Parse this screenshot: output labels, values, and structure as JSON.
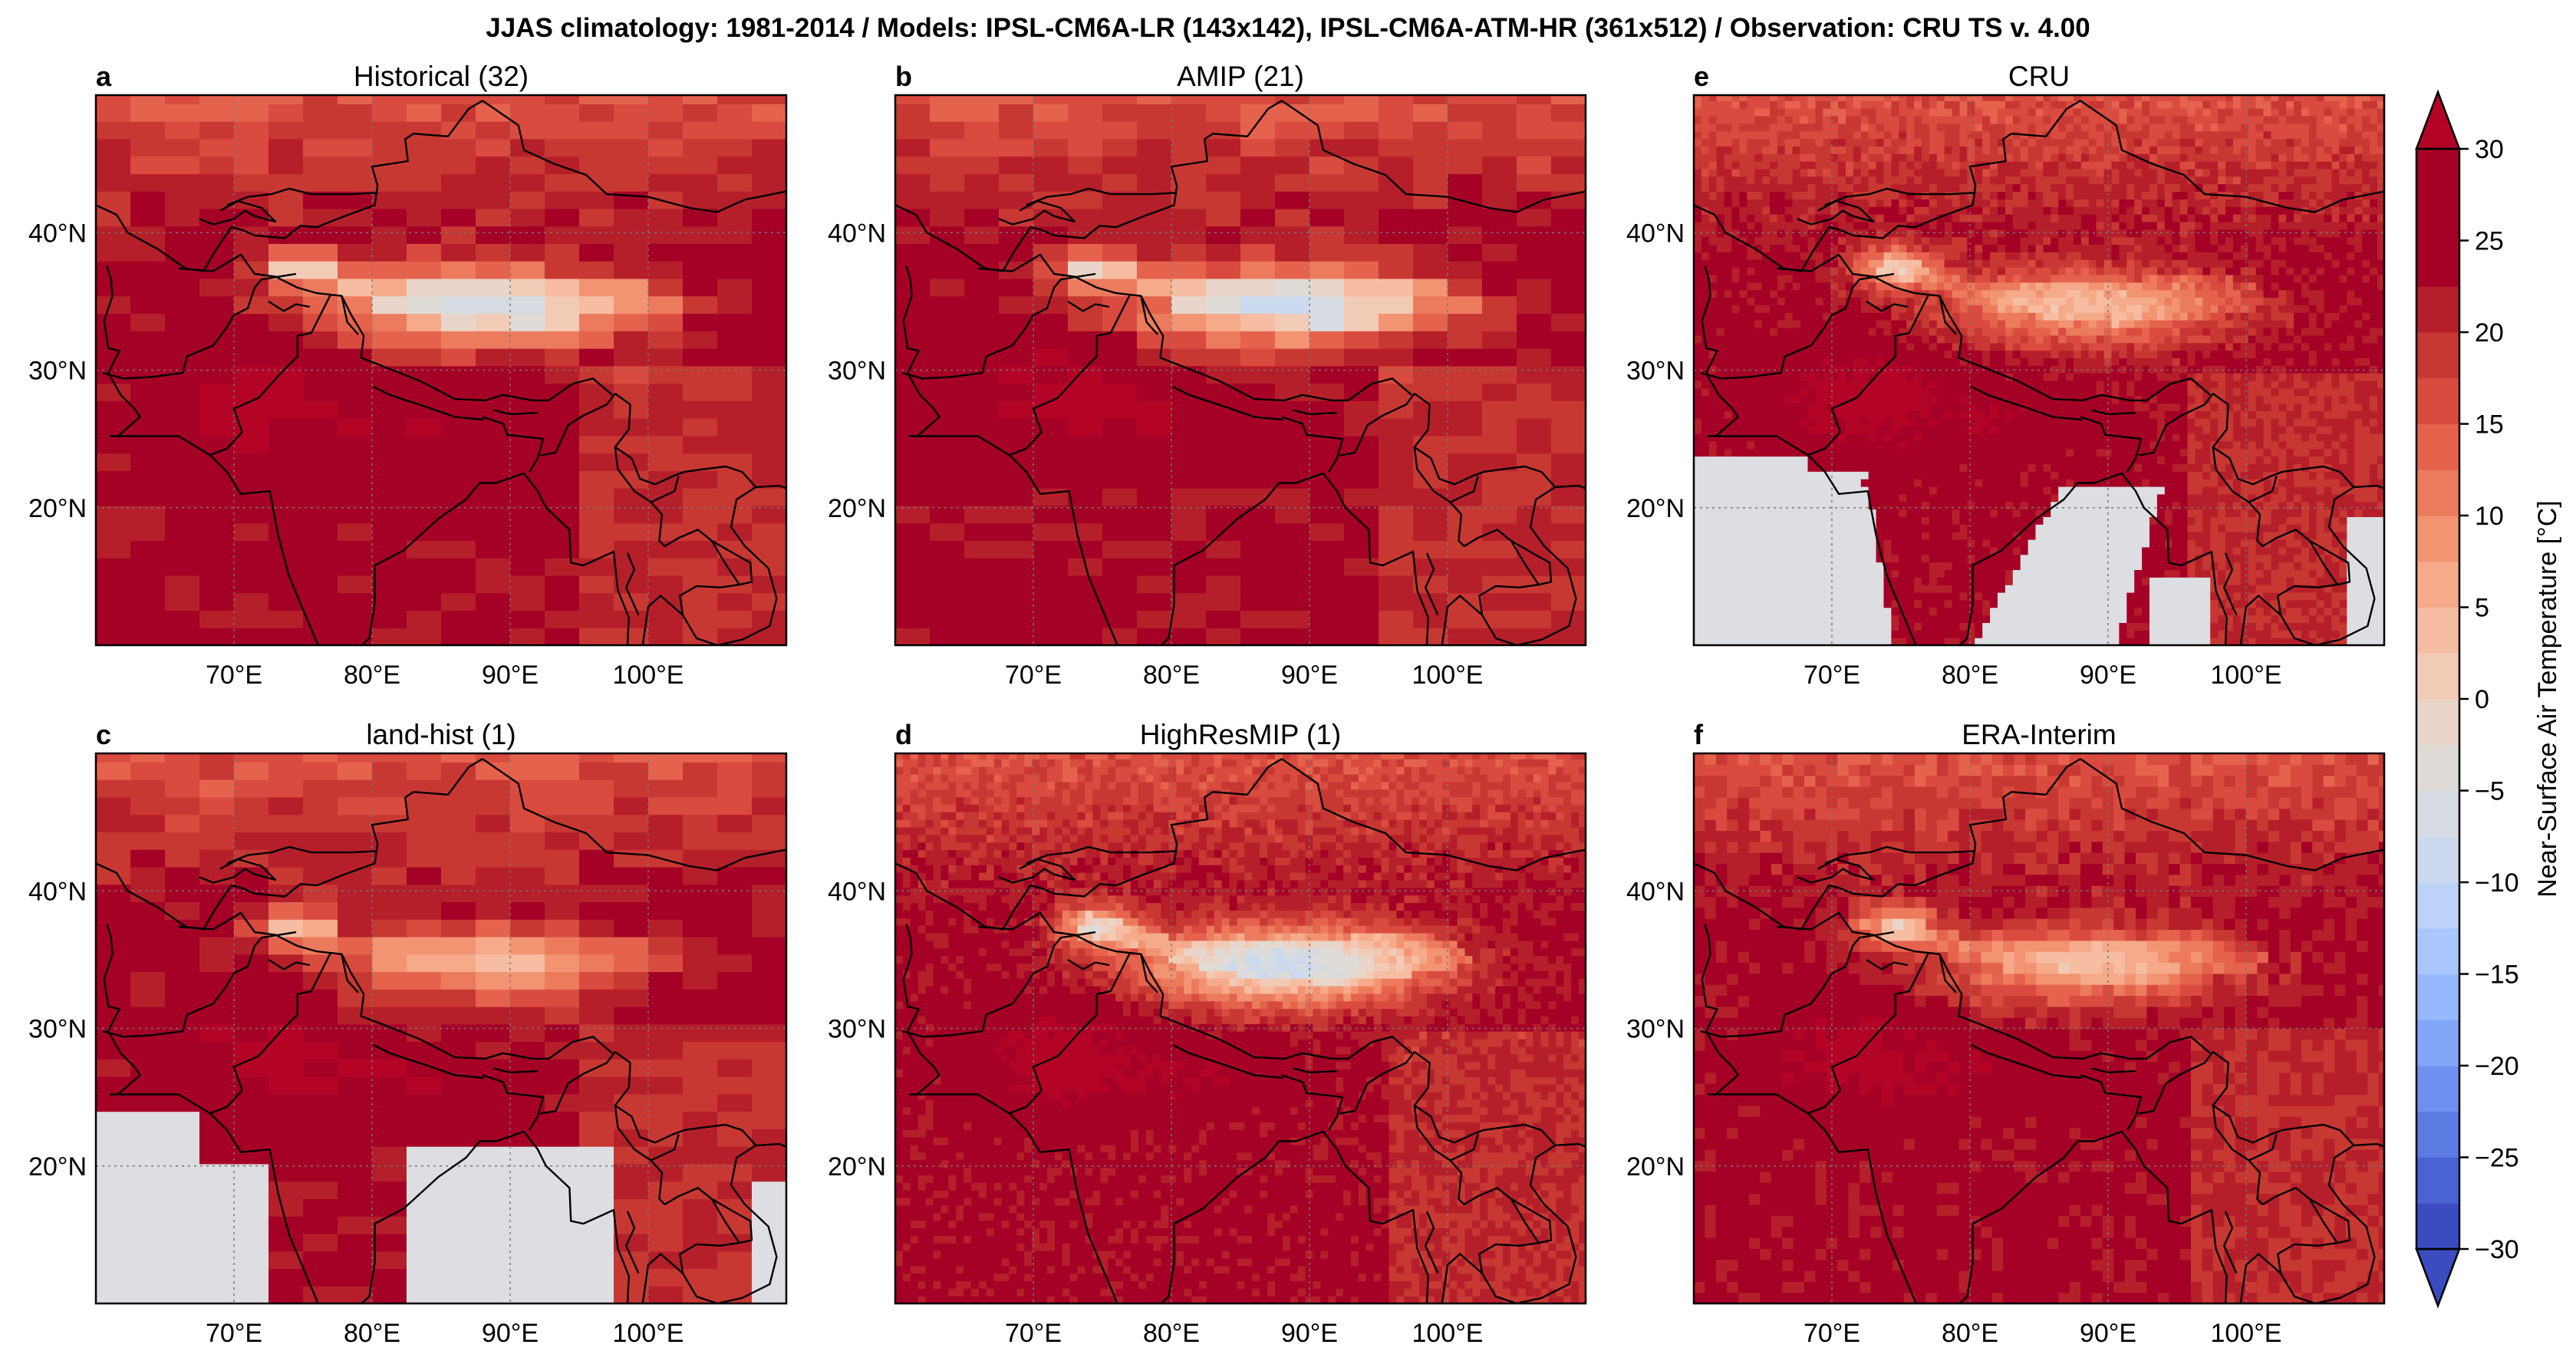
{
  "figure": {
    "title": "JJAS climatology: 1981-2014 / Models: IPSL-CM6A-LR (143x142), IPSL-CM6A-ATM-HR (361x512) / Observation: CRU TS v. 4.00"
  },
  "map_extent": {
    "lon": [
      60,
      110
    ],
    "lat": [
      10,
      50
    ]
  },
  "panels": [
    {
      "id": "a",
      "letter": "a",
      "title": "Historical (32)",
      "resolution": "low",
      "mask": "none"
    },
    {
      "id": "b",
      "letter": "b",
      "title": "AMIP (21)",
      "resolution": "low",
      "mask": "none"
    },
    {
      "id": "e",
      "letter": "e",
      "title": "CRU",
      "resolution": "high",
      "mask": "ocean_cru"
    },
    {
      "id": "c",
      "letter": "c",
      "title": "land-hist (1)",
      "resolution": "low",
      "mask": "ocean_lowres"
    },
    {
      "id": "d",
      "letter": "d",
      "title": "HighResMIP (1)",
      "resolution": "high",
      "mask": "none"
    },
    {
      "id": "f",
      "letter": "f",
      "title": "ERA-Interim",
      "resolution": "mid",
      "mask": "none"
    }
  ],
  "axes": {
    "lon_ticks": [
      "70°E",
      "80°E",
      "90°E",
      "100°E"
    ],
    "lat_ticks": [
      "40°N",
      "30°N",
      "20°N"
    ],
    "lon_values": [
      70,
      80,
      90,
      100
    ],
    "lat_values": [
      40,
      30,
      20
    ]
  },
  "colorbar": {
    "label": "Near-Surface Air Temperature [°C]",
    "ticks": [
      "30",
      "25",
      "20",
      "15",
      "10",
      "5",
      "0",
      "−5",
      "−10",
      "−15",
      "−20",
      "−25",
      "−30"
    ],
    "levels": [
      -30,
      -27.5,
      -25,
      -22.5,
      -20,
      -17.5,
      -15,
      -12.5,
      -10,
      -7.5,
      -5,
      -2.5,
      0,
      2.5,
      5,
      7.5,
      10,
      12.5,
      15,
      17.5,
      20,
      22.5,
      25,
      27.5,
      30
    ],
    "extend": "both",
    "colors": [
      "#3b4cc0",
      "#4a63d3",
      "#5b7be3",
      "#6e91f0",
      "#82a6fa",
      "#96b8ff",
      "#aac7fd",
      "#bcd2f7",
      "#ccd9ee",
      "#d7dce2",
      "#dfdbd6",
      "#e9d5c9",
      "#f2cbb7",
      "#f6bda2",
      "#f5aa89",
      "#f29372",
      "#ec7b5e",
      "#e5634d",
      "#da4b3f",
      "#c83833",
      "#b51f2a",
      "#a50026",
      "#a50026",
      "#a50026"
    ],
    "under_color": "#3b4cc0",
    "over_color": "#b40426"
  }
}
